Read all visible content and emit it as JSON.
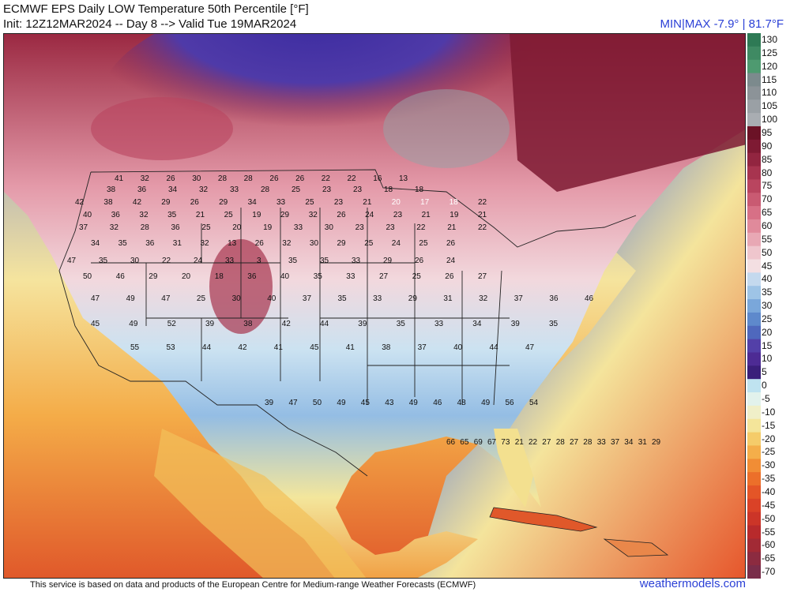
{
  "header": {
    "title": "ECMWF EPS Daily LOW Temperature 50th Percentile [°F]",
    "subtitle": "Init: 12Z12MAR2024 -- Day 8 --> Valid Tue 19MAR2024",
    "minmax": "MIN|MAX -7.9° | 81.7°F"
  },
  "footer": {
    "credit": "This service is based on data and products of the European Centre for Medium-range Weather Forecasts (ECMWF)",
    "site": "weathermodels.com"
  },
  "colorbar": {
    "labels": [
      "130",
      "125",
      "120",
      "115",
      "110",
      "105",
      "100",
      "95",
      "90",
      "85",
      "80",
      "75",
      "70",
      "65",
      "60",
      "55",
      "50",
      "45",
      "40",
      "35",
      "30",
      "25",
      "20",
      "15",
      "10",
      "5",
      "0",
      "-5",
      "-10",
      "-15",
      "-20",
      "-25",
      "-30",
      "-35",
      "-40",
      "-45",
      "-50",
      "-55",
      "-60",
      "-65",
      "-70"
    ],
    "colors": [
      "#2e7a55",
      "#3f8a63",
      "#4e9a70",
      "#7c8a8d",
      "#8c9398",
      "#9aa0a5",
      "#a9adb2",
      "#6b1226",
      "#7e1a33",
      "#922540",
      "#a7344f",
      "#b9455f",
      "#c95a72",
      "#d77086",
      "#e08a9b",
      "#e8a8b4",
      "#efc6cd",
      "#f3dfe2",
      "#c4d9ee",
      "#9ec4e6",
      "#7aa7da",
      "#5e89cc",
      "#4f68bd",
      "#5340a8",
      "#4d2b94",
      "#3a1f7a",
      "#bfe3f0",
      "#e2f2ec",
      "#f0efc8",
      "#f4e59a",
      "#f5cc6a",
      "#f4ae4a",
      "#f18d35",
      "#ec6f2a",
      "#e45527",
      "#da4227",
      "#cc3528",
      "#b82a2c",
      "#a22a35",
      "#8c2b40",
      "#7a2d4a"
    ]
  },
  "icons": {
    "logo": "none"
  },
  "map_values": [
    {
      "t": "41"
    },
    {
      "t": "32"
    },
    {
      "t": "26"
    },
    {
      "t": "30"
    },
    {
      "t": "28"
    },
    {
      "t": "28"
    },
    {
      "t": "26"
    },
    {
      "t": "26"
    },
    {
      "t": "22"
    },
    {
      "t": "22"
    },
    {
      "t": "16"
    },
    {
      "t": "13"
    },
    {
      "t": "38"
    },
    {
      "t": "36"
    },
    {
      "t": "34"
    },
    {
      "t": "32"
    },
    {
      "t": "33"
    },
    {
      "t": "28"
    },
    {
      "t": "25"
    },
    {
      "t": "23"
    },
    {
      "t": "23"
    },
    {
      "t": "18"
    },
    {
      "t": "18"
    },
    {
      "t": "42"
    },
    {
      "t": "38"
    },
    {
      "t": "42"
    },
    {
      "t": "29"
    },
    {
      "t": "26"
    },
    {
      "t": "29"
    },
    {
      "t": "34"
    },
    {
      "t": "33"
    },
    {
      "t": "25"
    },
    {
      "t": "23"
    },
    {
      "t": "21"
    },
    {
      "t": "20"
    },
    {
      "t": "17"
    },
    {
      "t": "18"
    },
    {
      "t": "22"
    },
    {
      "t": "40"
    },
    {
      "t": "36"
    },
    {
      "t": "32"
    },
    {
      "t": "35"
    },
    {
      "t": "21"
    },
    {
      "t": "25"
    },
    {
      "t": "19"
    },
    {
      "t": "29"
    },
    {
      "t": "32"
    },
    {
      "t": "26"
    },
    {
      "t": "24"
    },
    {
      "t": "23"
    },
    {
      "t": "21"
    },
    {
      "t": "19"
    },
    {
      "t": "21"
    },
    {
      "t": "37"
    },
    {
      "t": "32"
    },
    {
      "t": "28"
    },
    {
      "t": "36"
    },
    {
      "t": "25"
    },
    {
      "t": "20"
    },
    {
      "t": "19"
    },
    {
      "t": "33"
    },
    {
      "t": "30"
    },
    {
      "t": "23"
    },
    {
      "t": "23"
    },
    {
      "t": "22"
    },
    {
      "t": "21"
    },
    {
      "t": "22"
    },
    {
      "t": "34"
    },
    {
      "t": "35"
    },
    {
      "t": "36"
    },
    {
      "t": "31"
    },
    {
      "t": "32"
    },
    {
      "t": "13"
    },
    {
      "t": "26"
    },
    {
      "t": "32"
    },
    {
      "t": "30"
    },
    {
      "t": "29"
    },
    {
      "t": "25"
    },
    {
      "t": "24"
    },
    {
      "t": "25"
    },
    {
      "t": "26"
    },
    {
      "t": "47"
    },
    {
      "t": "35"
    },
    {
      "t": "30"
    },
    {
      "t": "22"
    },
    {
      "t": "24"
    },
    {
      "t": "33"
    },
    {
      "t": "3"
    },
    {
      "t": "35"
    },
    {
      "t": "35"
    },
    {
      "t": "33"
    },
    {
      "t": "29"
    },
    {
      "t": "26"
    },
    {
      "t": "24"
    },
    {
      "t": "50"
    },
    {
      "t": "46"
    },
    {
      "t": "29"
    },
    {
      "t": "20"
    },
    {
      "t": "18"
    },
    {
      "t": "36"
    },
    {
      "t": "40"
    },
    {
      "t": "35"
    },
    {
      "t": "33"
    },
    {
      "t": "27"
    },
    {
      "t": "25"
    },
    {
      "t": "26"
    },
    {
      "t": "27"
    },
    {
      "t": "47"
    },
    {
      "t": "49"
    },
    {
      "t": "47"
    },
    {
      "t": "25"
    },
    {
      "t": "30"
    },
    {
      "t": "40"
    },
    {
      "t": "37"
    },
    {
      "t": "35"
    },
    {
      "t": "33"
    },
    {
      "t": "29"
    },
    {
      "t": "31"
    },
    {
      "t": "32"
    },
    {
      "t": "37"
    },
    {
      "t": "36"
    },
    {
      "t": "46"
    },
    {
      "t": "45"
    },
    {
      "t": "49"
    },
    {
      "t": "52"
    },
    {
      "t": "39"
    },
    {
      "t": "38"
    },
    {
      "t": "42"
    },
    {
      "t": "44"
    },
    {
      "t": "39"
    },
    {
      "t": "35"
    },
    {
      "t": "33"
    },
    {
      "t": "34"
    },
    {
      "t": "39"
    },
    {
      "t": "35"
    },
    {
      "t": "55"
    },
    {
      "t": "53"
    },
    {
      "t": "44"
    },
    {
      "t": "42"
    },
    {
      "t": "41"
    },
    {
      "t": "45"
    },
    {
      "t": "41"
    },
    {
      "t": "38"
    },
    {
      "t": "37"
    },
    {
      "t": "40"
    },
    {
      "t": "44"
    },
    {
      "t": "47"
    },
    {
      "t": "39"
    },
    {
      "t": "47"
    },
    {
      "t": "50"
    },
    {
      "t": "49"
    },
    {
      "t": "45"
    },
    {
      "t": "43"
    },
    {
      "t": "49"
    },
    {
      "t": "46"
    },
    {
      "t": "48"
    },
    {
      "t": "49"
    },
    {
      "t": "56"
    },
    {
      "t": "54"
    },
    {
      "t": "66"
    },
    {
      "t": "65"
    },
    {
      "t": "69"
    },
    {
      "t": "67"
    },
    {
      "t": "73"
    },
    {
      "t": "21"
    },
    {
      "t": "22"
    },
    {
      "t": "27"
    },
    {
      "t": "28"
    },
    {
      "t": "27"
    },
    {
      "t": "28"
    },
    {
      "t": "33"
    },
    {
      "t": "37"
    },
    {
      "t": "34"
    },
    {
      "t": "31"
    },
    {
      "t": "29"
    }
  ]
}
